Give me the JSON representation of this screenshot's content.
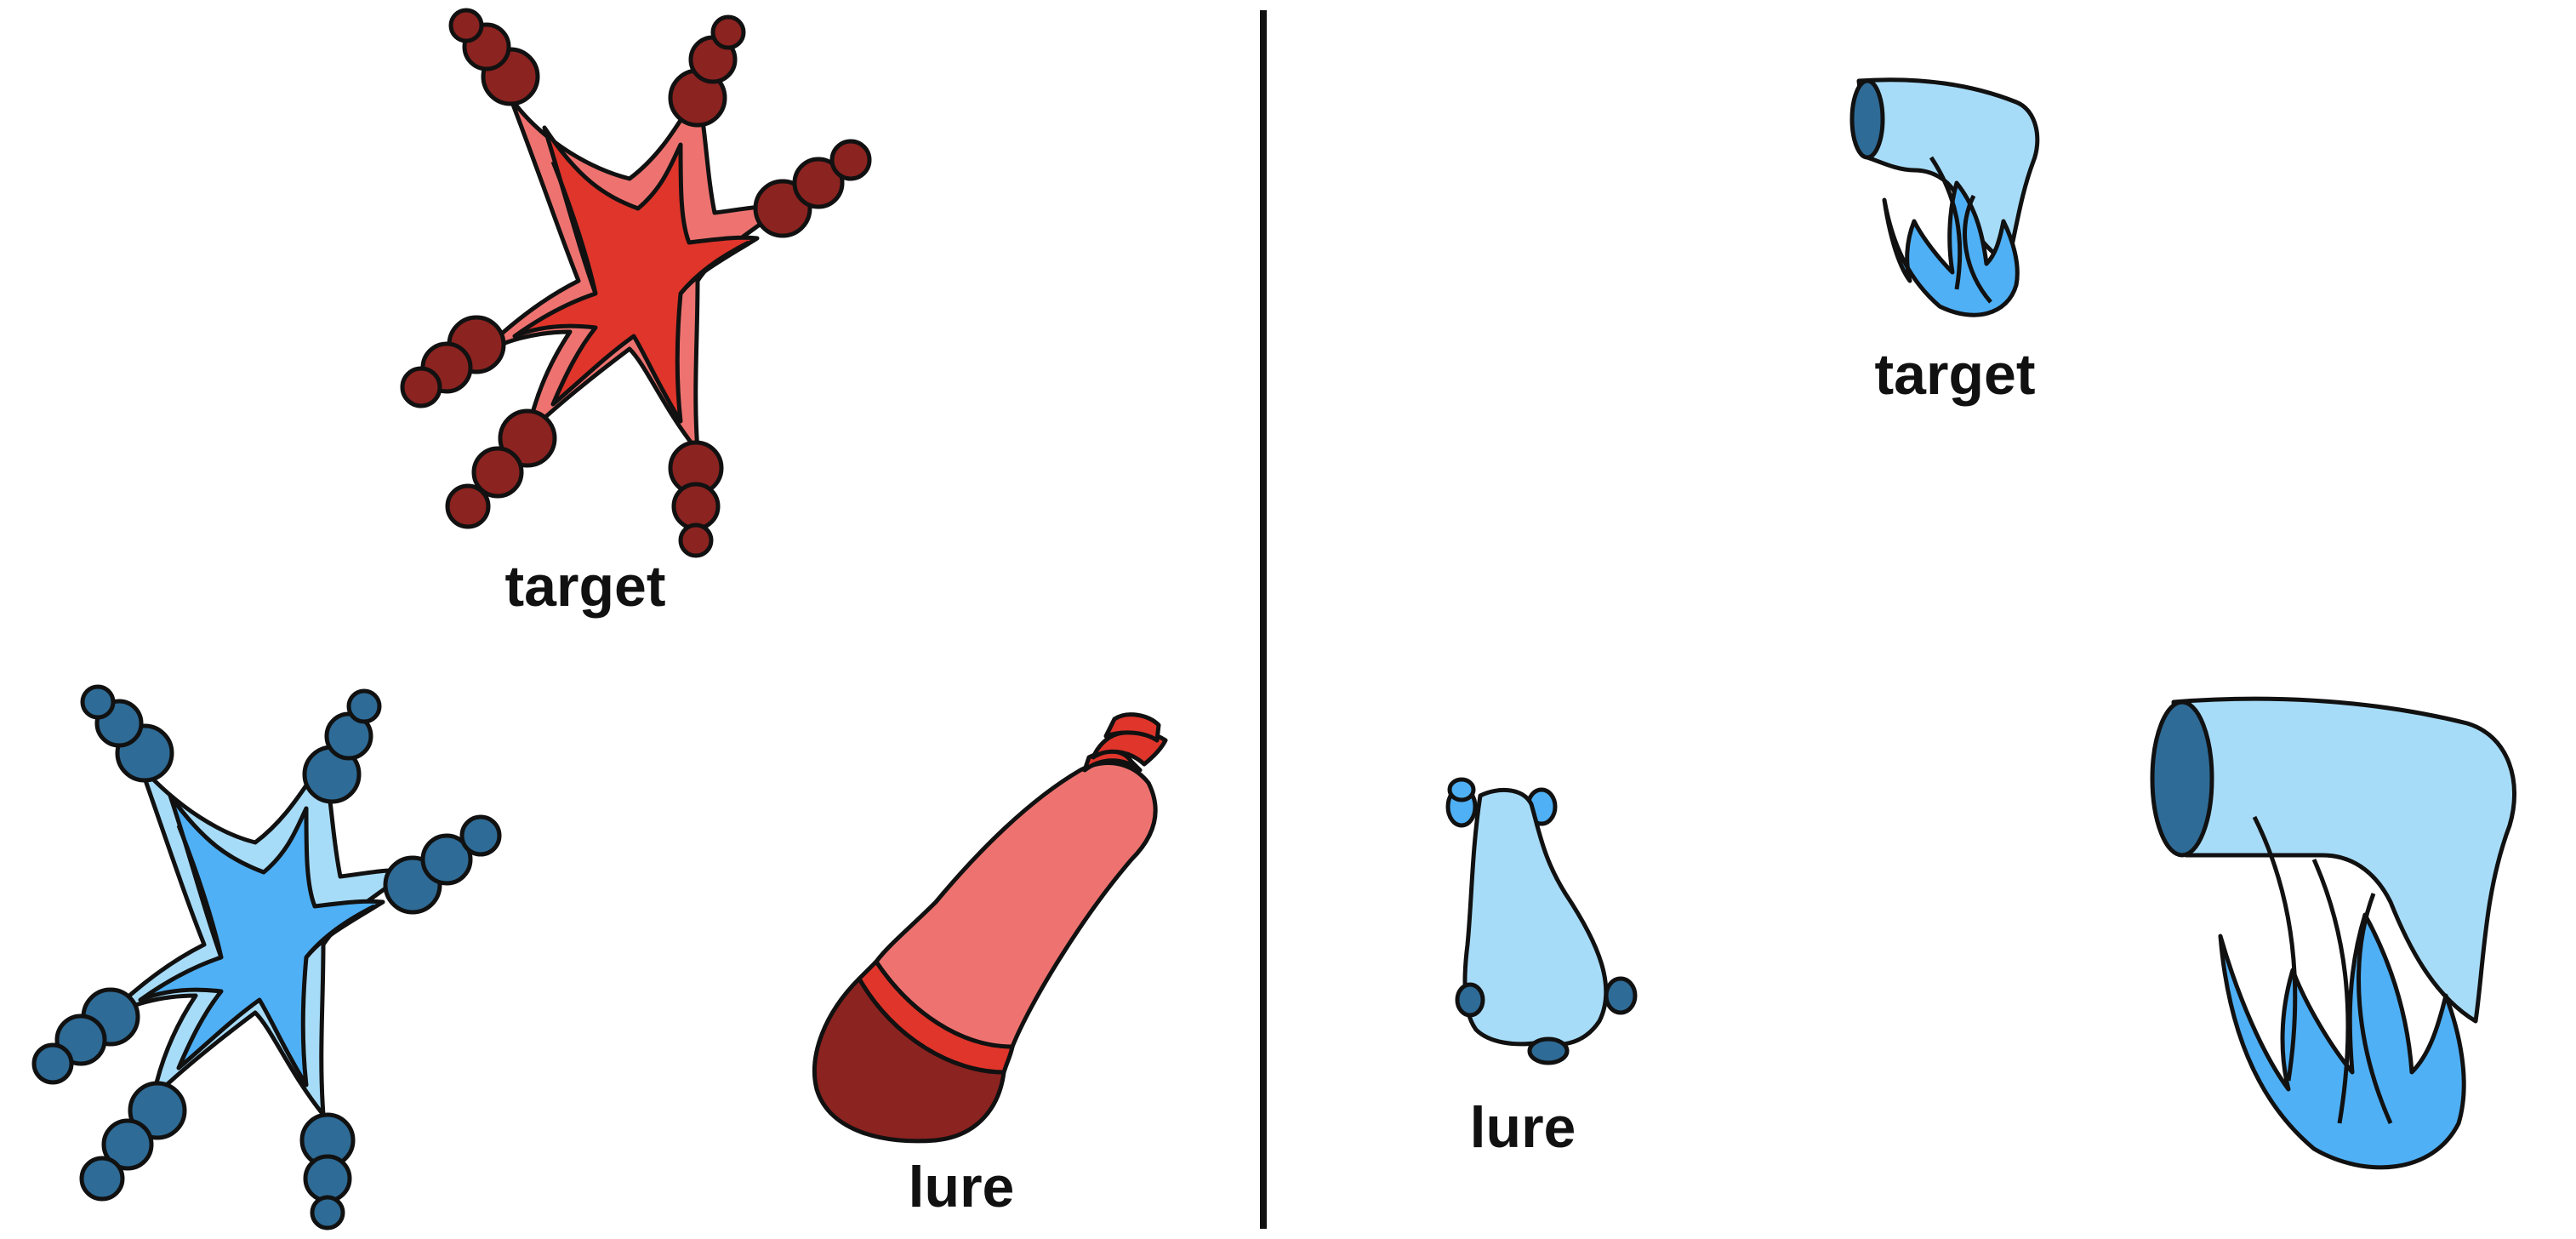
{
  "colors": {
    "red_dark": "#8b2320",
    "red_mid": "#e0352b",
    "red_light": "#ee7370",
    "blue_dark": "#2e6b96",
    "blue_mid": "#4fb0f5",
    "blue_light": "#a7dcf8",
    "outline": "#111111",
    "divider": "#111111"
  },
  "left_panel": {
    "target": {
      "shape": "red-star-creature",
      "label": "target"
    },
    "options": [
      {
        "shape": "blue-star-creature",
        "label": ""
      },
      {
        "shape": "red-bottle",
        "label": "lure"
      }
    ]
  },
  "right_panel": {
    "target": {
      "shape": "small-blue-hairdryer-flame",
      "label": "target"
    },
    "options": [
      {
        "shape": "blue-blob-creature",
        "label": "lure"
      },
      {
        "shape": "large-blue-hairdryer-flame",
        "label": ""
      }
    ]
  }
}
